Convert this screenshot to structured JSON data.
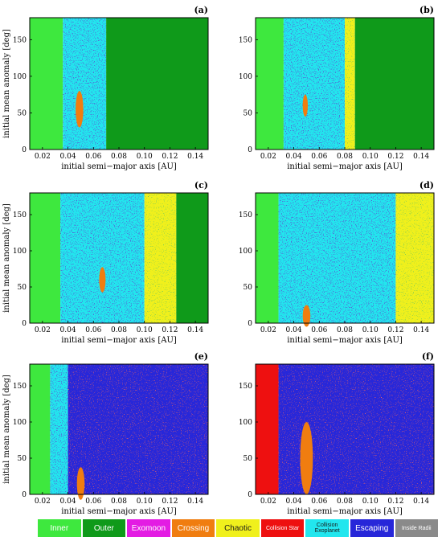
{
  "colors": {
    "inner": "#3ee83e",
    "outer": "#0f9a1a",
    "exomoon": "#e31ce3",
    "crossing": "#f07d10",
    "chaotic": "#f0f01c",
    "collision_star": "#ee1010",
    "collision_exoplanet": "#22e6ee",
    "escaping": "#2727d9",
    "inside_radii": "#8a8a8a",
    "speck": "#1a1aa6"
  },
  "legend": [
    {
      "label": "Inner",
      "color_key": "inner"
    },
    {
      "label": "Outer",
      "color_key": "outer"
    },
    {
      "label": "Exomoon",
      "color_key": "exomoon"
    },
    {
      "label": "Crossing",
      "color_key": "crossing"
    },
    {
      "label": "Chaotic",
      "color_key": "chaotic"
    },
    {
      "label": "Collision Star",
      "color_key": "collision_star"
    },
    {
      "label": "Collision Exoplanet",
      "color_key": "collision_exoplanet"
    },
    {
      "label": "Escaping",
      "color_key": "escaping"
    },
    {
      "label": "Inside Radii",
      "color_key": "inside_radii"
    }
  ],
  "chart_data": [
    {
      "panel": "(a)",
      "type": "heatmap",
      "xlabel": "initial semi−major axis [AU]",
      "ylabel": "initial mean anomaly [deg]",
      "xlim": [
        0.01,
        0.15
      ],
      "ylim": [
        0,
        180
      ],
      "xticks": [
        0.02,
        0.04,
        0.06,
        0.08,
        0.1,
        0.12,
        0.14
      ],
      "xticklabels": [
        "0.02",
        "0.04",
        "0.06",
        "0.08",
        "0.10",
        "0.12",
        "0.14"
      ],
      "yticks": [
        0,
        50,
        100,
        150
      ],
      "yticklabels": [
        "0",
        "50",
        "100",
        "150"
      ],
      "regions": [
        {
          "class": "inner",
          "a_range": [
            0.01,
            0.036
          ]
        },
        {
          "class": "collision_exoplanet",
          "a_range": [
            0.036,
            0.07
          ]
        },
        {
          "class": "outer",
          "a_range": [
            0.07,
            0.15
          ]
        }
      ],
      "islands": [
        {
          "class": "crossing",
          "a": 0.049,
          "M": 55,
          "width_a": 0.006,
          "height_M": 50
        }
      ]
    },
    {
      "panel": "(b)",
      "type": "heatmap",
      "xlabel": "initial semi−major axis [AU]",
      "ylabel": "",
      "xlim": [
        0.01,
        0.15
      ],
      "ylim": [
        0,
        180
      ],
      "xticks": [
        0.02,
        0.04,
        0.06,
        0.08,
        0.1,
        0.12,
        0.14
      ],
      "xticklabels": [
        "0.02",
        "0.04",
        "0.06",
        "0.08",
        "0.10",
        "0.12",
        "0.14"
      ],
      "yticks": [
        0,
        50,
        100,
        150
      ],
      "yticklabels": [
        "0",
        "50",
        "100",
        "150"
      ],
      "regions": [
        {
          "class": "inner",
          "a_range": [
            0.01,
            0.032
          ]
        },
        {
          "class": "collision_exoplanet",
          "a_range": [
            0.032,
            0.08
          ]
        },
        {
          "class": "chaotic",
          "a_range": [
            0.08,
            0.088
          ]
        },
        {
          "class": "outer",
          "a_range": [
            0.088,
            0.15
          ]
        }
      ],
      "islands": [
        {
          "class": "crossing",
          "a": 0.049,
          "M": 60,
          "width_a": 0.004,
          "height_M": 30
        }
      ]
    },
    {
      "panel": "(c)",
      "type": "heatmap",
      "xlabel": "initial semi−major axis [AU]",
      "ylabel": "initial mean anomaly [deg]",
      "xlim": [
        0.01,
        0.15
      ],
      "ylim": [
        0,
        180
      ],
      "xticks": [
        0.02,
        0.04,
        0.06,
        0.08,
        0.1,
        0.12,
        0.14
      ],
      "xticklabels": [
        "0.02",
        "0.04",
        "0.06",
        "0.08",
        "0.10",
        "0.12",
        "0.14"
      ],
      "yticks": [
        0,
        50,
        100,
        150
      ],
      "yticklabels": [
        "0",
        "50",
        "100",
        "150"
      ],
      "regions": [
        {
          "class": "inner",
          "a_range": [
            0.01,
            0.034
          ]
        },
        {
          "class": "collision_exoplanet",
          "a_range": [
            0.034,
            0.1
          ]
        },
        {
          "class": "chaotic",
          "a_range": [
            0.1,
            0.125
          ]
        },
        {
          "class": "outer",
          "a_range": [
            0.125,
            0.15
          ]
        }
      ],
      "islands": [
        {
          "class": "crossing",
          "a": 0.067,
          "M": 60,
          "width_a": 0.005,
          "height_M": 35
        }
      ]
    },
    {
      "panel": "(d)",
      "type": "heatmap",
      "xlabel": "initial semi−major axis [AU]",
      "ylabel": "",
      "xlim": [
        0.01,
        0.15
      ],
      "ylim": [
        0,
        180
      ],
      "xticks": [
        0.02,
        0.04,
        0.06,
        0.08,
        0.1,
        0.12,
        0.14
      ],
      "xticklabels": [
        "0.02",
        "0.04",
        "0.06",
        "0.08",
        "0.10",
        "0.12",
        "0.14"
      ],
      "yticks": [
        0,
        50,
        100,
        150
      ],
      "yticklabels": [
        "0",
        "50",
        "100",
        "150"
      ],
      "regions": [
        {
          "class": "inner",
          "a_range": [
            0.01,
            0.028
          ]
        },
        {
          "class": "collision_exoplanet",
          "a_range": [
            0.028,
            0.12
          ]
        },
        {
          "class": "chaotic",
          "a_range": [
            0.12,
            0.15
          ]
        }
      ],
      "islands": [
        {
          "class": "crossing",
          "a": 0.05,
          "M": 10,
          "width_a": 0.006,
          "height_M": 30
        }
      ]
    },
    {
      "panel": "(e)",
      "type": "heatmap",
      "xlabel": "initial semi−major axis [AU]",
      "ylabel": "initial mean anomaly [deg]",
      "xlim": [
        0.01,
        0.15
      ],
      "ylim": [
        0,
        180
      ],
      "xticks": [
        0.02,
        0.04,
        0.06,
        0.08,
        0.1,
        0.12,
        0.14
      ],
      "xticklabels": [
        "0.02",
        "0.04",
        "0.06",
        "0.08",
        "0.10",
        "0.12",
        "0.14"
      ],
      "yticks": [
        0,
        50,
        100,
        150
      ],
      "yticklabels": [
        "0",
        "50",
        "100",
        "150"
      ],
      "regions": [
        {
          "class": "inner",
          "a_range": [
            0.01,
            0.026
          ]
        },
        {
          "class": "collision_exoplanet",
          "a_range": [
            0.026,
            0.04
          ]
        },
        {
          "class": "escaping",
          "a_range": [
            0.04,
            0.15
          ]
        }
      ],
      "islands": [
        {
          "class": "crossing",
          "a": 0.05,
          "M": 15,
          "width_a": 0.006,
          "height_M": 45
        }
      ]
    },
    {
      "panel": "(f)",
      "type": "heatmap",
      "xlabel": "initial semi−major axis [AU]",
      "ylabel": "",
      "xlim": [
        0.01,
        0.15
      ],
      "ylim": [
        0,
        180
      ],
      "xticks": [
        0.02,
        0.04,
        0.06,
        0.08,
        0.1,
        0.12,
        0.14
      ],
      "xticklabels": [
        "0.02",
        "0.04",
        "0.06",
        "0.08",
        "0.10",
        "0.12",
        "0.14"
      ],
      "yticks": [
        0,
        50,
        100,
        150
      ],
      "yticklabels": [
        "0",
        "50",
        "100",
        "150"
      ],
      "regions": [
        {
          "class": "collision_star",
          "a_range": [
            0.01,
            0.028
          ]
        },
        {
          "class": "escaping",
          "a_range": [
            0.028,
            0.15
          ]
        }
      ],
      "islands": [
        {
          "class": "crossing",
          "a": 0.05,
          "M": 50,
          "width_a": 0.01,
          "height_M": 100
        }
      ]
    }
  ]
}
